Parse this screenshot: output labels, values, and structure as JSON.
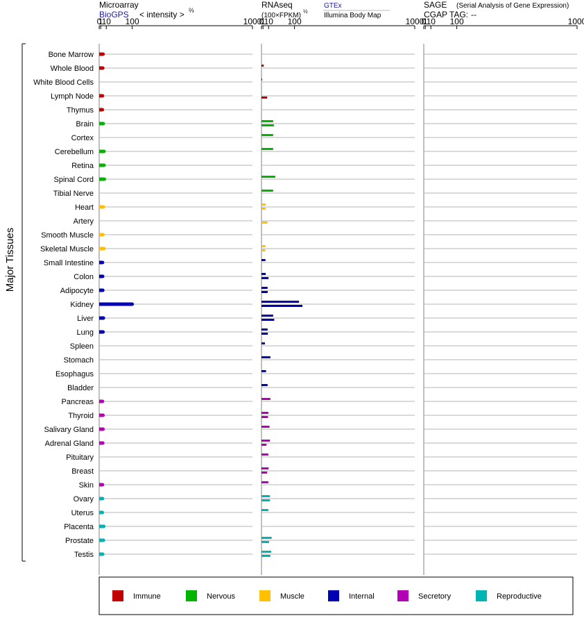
{
  "chart_data": {
    "type": "bar",
    "ylabel": "Major Tissues",
    "tissues": [
      "Bone Marrow",
      "Whole Blood",
      "White Blood Cells",
      "Lymph Node",
      "Thymus",
      "Brain",
      "Cortex",
      "Cerebellum",
      "Retina",
      "Spinal Cord",
      "Tibial Nerve",
      "Heart",
      "Artery",
      "Smooth Muscle",
      "Skeletal Muscle",
      "Small Intestine",
      "Colon",
      "Adipocyte",
      "Kidney",
      "Liver",
      "Lung",
      "Spleen",
      "Stomach",
      "Esophagus",
      "Bladder",
      "Pancreas",
      "Thyroid",
      "Salivary Gland",
      "Adrenal Gland",
      "Pituitary",
      "Breast",
      "Skin",
      "Ovary",
      "Uterus",
      "Placenta",
      "Prostate",
      "Testis"
    ],
    "tissue_group": [
      "Immune",
      "Immune",
      "Immune",
      "Immune",
      "Immune",
      "Nervous",
      "Nervous",
      "Nervous",
      "Nervous",
      "Nervous",
      "Nervous",
      "Muscle",
      "Muscle",
      "Muscle",
      "Muscle",
      "Internal",
      "Internal",
      "Internal",
      "Internal",
      "Internal",
      "Internal",
      "Internal",
      "Internal",
      "Internal",
      "Internal",
      "Secretory",
      "Secretory",
      "Secretory",
      "Secretory",
      "Secretory",
      "Secretory",
      "Secretory",
      "Reproductive",
      "Reproductive",
      "Reproductive",
      "Reproductive",
      "Reproductive"
    ],
    "group_colors": {
      "Immune": "#c00000",
      "Nervous": "#00b400",
      "Muscle": "#ffc000",
      "Internal": "#0000b4",
      "Secretory": "#b400b4",
      "Reproductive": "#00b4b4"
    },
    "panels": [
      {
        "id": "microarray",
        "title": "Microarray",
        "source": "BioGPS",
        "scale_label": "< intensity >",
        "scale_exponent": "⅔",
        "ticks": [
          0,
          1,
          10,
          100,
          1000
        ],
        "xlim": [
          0,
          1000
        ],
        "values": [
          4.0,
          3.6,
          null,
          3.2,
          3.0,
          4.3,
          null,
          5.6,
          5.6,
          6.2,
          null,
          4.6,
          null,
          3.8,
          5.6,
          3.2,
          3.4,
          3.6,
          100,
          4.6,
          4.0,
          null,
          null,
          null,
          null,
          3.2,
          4.0,
          4.0,
          3.6,
          null,
          null,
          3.2,
          3.2,
          3.0,
          5.2,
          4.6,
          3.4
        ],
        "values2": null
      },
      {
        "id": "rnaseq",
        "title": "RNAseq",
        "scale_label": "(100×FPKM)",
        "scale_exponent": "½",
        "legend_gtex": "GTEx",
        "legend_illumina": "Illumina Body Map",
        "ticks": [
          0,
          1,
          10,
          100,
          1000
        ],
        "xlim": [
          0,
          1000
        ],
        "values": [
          null,
          1.8,
          0.01,
          null,
          null,
          21,
          21,
          21,
          null,
          27,
          21,
          4.4,
          null,
          null,
          4.2,
          4.2,
          4.6,
          8,
          121,
          21,
          8,
          3.4,
          14,
          5.2,
          8,
          14,
          9.5,
          12,
          13,
          9.5,
          10,
          9.5,
          13,
          9.5,
          null,
          17,
          16
        ],
        "values2": [
          null,
          null,
          null,
          7.2,
          null,
          23,
          null,
          null,
          null,
          null,
          null,
          4.4,
          7.5,
          null,
          3.9,
          null,
          9.8,
          8.2,
          138,
          24,
          8.5,
          null,
          null,
          null,
          null,
          null,
          8.8,
          null,
          6,
          null,
          7.2,
          null,
          13,
          null,
          null,
          11,
          14
        ]
      },
      {
        "id": "sage",
        "title": "SAGE",
        "subtitle": "(Serial Analysis of Gene Expression)",
        "tag_label": "CGAP TAG:",
        "tag_value": "--",
        "ticks": [
          0,
          1,
          10,
          100,
          1000
        ],
        "xlim": [
          0,
          1000
        ],
        "values": [],
        "values2": null
      }
    ],
    "legend": [
      "Immune",
      "Nervous",
      "Muscle",
      "Internal",
      "Secretory",
      "Reproductive"
    ],
    "legend_placement": "bottom"
  }
}
